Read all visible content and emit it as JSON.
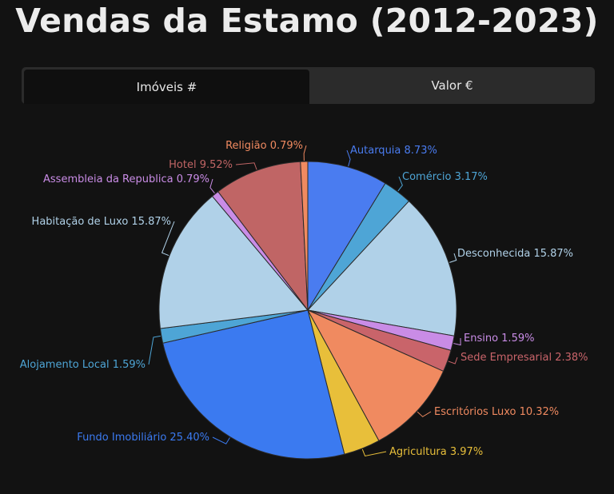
{
  "title": "Vendas da Estamo (2012-2023)",
  "tabs": [
    {
      "label": "Imóveis #",
      "active": true
    },
    {
      "label": "Valor €",
      "active": false
    }
  ],
  "chart_data": {
    "type": "pie",
    "slices": [
      {
        "label": "Autarquia 8.73%",
        "value": 8.73,
        "color": "#4a7cf0"
      },
      {
        "label": "Comércio 3.17%",
        "value": 3.17,
        "color": "#4ea5d6"
      },
      {
        "label": "Desconhecida 15.87%",
        "value": 15.87,
        "color": "#b0d1e8"
      },
      {
        "label": "Ensino 1.59%",
        "value": 1.59,
        "color": "#c98ce6"
      },
      {
        "label": "Sede Empresarial 2.38%",
        "value": 2.38,
        "color": "#c9646a"
      },
      {
        "label": "Escritórios Luxo 10.32%",
        "value": 10.32,
        "color": "#f08a60"
      },
      {
        "label": "Agricultura 3.97%",
        "value": 3.97,
        "color": "#e8bf3a"
      },
      {
        "label": "Fundo Imobiliário 25.40%",
        "value": 25.4,
        "color": "#3b7af0"
      },
      {
        "label": "Alojamento Local 1.59%",
        "value": 1.59,
        "color": "#4ea5d6"
      },
      {
        "label": "Habitação de Luxo 15.87%",
        "value": 15.87,
        "color": "#b0d1e8"
      },
      {
        "label": "Assembleia da Republica 0.79%",
        "value": 0.79,
        "color": "#c98ce6"
      },
      {
        "label": "Hotel 9.52%",
        "value": 9.52,
        "color": "#c06565"
      },
      {
        "label": "Religião 0.79%",
        "value": 0.79,
        "color": "#f08a60"
      }
    ]
  }
}
